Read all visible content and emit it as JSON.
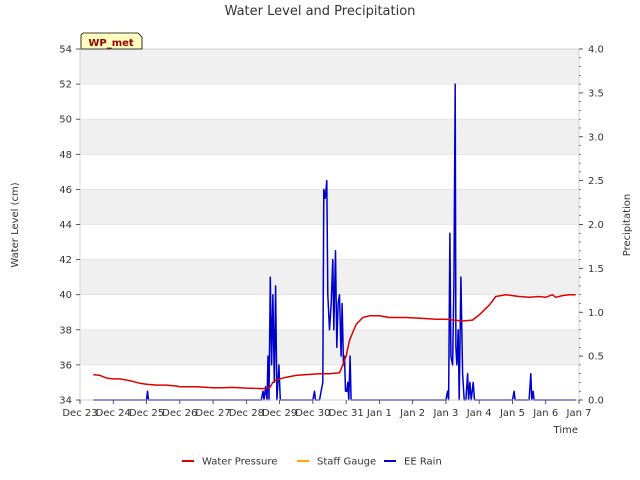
{
  "chart_data": {
    "type": "line",
    "title": "Water Level and Precipitation",
    "xlabel": "Time",
    "ylabel_left": "Water Level (cm)",
    "ylabel_right": "Precipitation",
    "badge": "WP_met",
    "x_ticks": [
      "Dec 23",
      "Dec 24",
      "Dec 25",
      "Dec 26",
      "Dec 27",
      "Dec 28",
      "Dec 29",
      "Dec 30",
      "Dec 31",
      "Jan 1",
      "Jan 2",
      "Jan 3",
      "Jan 4",
      "Jan 5",
      "Jan 6",
      "Jan 7"
    ],
    "xlim": [
      0,
      15
    ],
    "ylim_left": [
      34,
      54
    ],
    "y_ticks_left": [
      "34",
      "36",
      "38",
      "40",
      "42",
      "44",
      "46",
      "48",
      "50",
      "52",
      "54"
    ],
    "ylim_right": [
      0,
      4.0
    ],
    "y_ticks_right": [
      "0.0",
      "0.5",
      "1.0",
      "1.5",
      "2.0",
      "2.5",
      "3.0",
      "3.5",
      "4.0"
    ],
    "grid": true,
    "legend_position": "bottom",
    "colors": {
      "water_pressure": "#dd0000",
      "staff_gauge": "#ffa500",
      "ee_rain": "#0000cc",
      "band": "#f0f0f0",
      "badge_bg": "#ffffc0",
      "badge_text": "#990000"
    },
    "series": [
      {
        "name": "Water Pressure",
        "axis": "left",
        "points": [
          [
            0.4,
            35.45
          ],
          [
            0.6,
            35.4
          ],
          [
            0.8,
            35.25
          ],
          [
            1.0,
            35.2
          ],
          [
            1.2,
            35.2
          ],
          [
            1.5,
            35.1
          ],
          [
            1.8,
            34.95
          ],
          [
            2.0,
            34.9
          ],
          [
            2.3,
            34.85
          ],
          [
            2.6,
            34.85
          ],
          [
            2.9,
            34.8
          ],
          [
            3.0,
            34.75
          ],
          [
            3.5,
            34.75
          ],
          [
            4.0,
            34.7
          ],
          [
            4.3,
            34.7
          ],
          [
            4.6,
            34.72
          ],
          [
            5.0,
            34.68
          ],
          [
            5.5,
            34.65
          ],
          [
            5.7,
            34.7
          ],
          [
            5.8,
            35.0
          ],
          [
            5.9,
            35.15
          ],
          [
            6.2,
            35.3
          ],
          [
            6.5,
            35.4
          ],
          [
            6.8,
            35.45
          ],
          [
            7.2,
            35.5
          ],
          [
            7.5,
            35.5
          ],
          [
            7.8,
            35.55
          ],
          [
            7.9,
            36.0
          ],
          [
            8.0,
            36.5
          ],
          [
            8.1,
            37.4
          ],
          [
            8.3,
            38.3
          ],
          [
            8.5,
            38.7
          ],
          [
            8.7,
            38.8
          ],
          [
            9.0,
            38.8
          ],
          [
            9.3,
            38.7
          ],
          [
            9.8,
            38.7
          ],
          [
            10.3,
            38.65
          ],
          [
            10.7,
            38.6
          ],
          [
            11.0,
            38.6
          ],
          [
            11.5,
            38.5
          ],
          [
            11.8,
            38.55
          ],
          [
            12.0,
            38.85
          ],
          [
            12.3,
            39.4
          ],
          [
            12.5,
            39.9
          ],
          [
            12.8,
            40.0
          ],
          [
            13.2,
            39.9
          ],
          [
            13.5,
            39.85
          ],
          [
            13.8,
            39.9
          ],
          [
            14.0,
            39.85
          ],
          [
            14.2,
            40.0
          ],
          [
            14.3,
            39.85
          ],
          [
            14.5,
            39.95
          ],
          [
            14.7,
            40.0
          ],
          [
            14.9,
            40.0
          ]
        ]
      },
      {
        "name": "Staff Gauge",
        "axis": "left",
        "points": []
      },
      {
        "name": "EE Rain",
        "axis": "right",
        "points": [
          [
            0.4,
            0
          ],
          [
            2.0,
            0
          ],
          [
            2.03,
            0.1
          ],
          [
            2.06,
            0
          ],
          [
            5.0,
            0
          ],
          [
            5.45,
            0
          ],
          [
            5.5,
            0.1
          ],
          [
            5.53,
            0
          ],
          [
            5.58,
            0.15
          ],
          [
            5.62,
            0
          ],
          [
            5.65,
            0.5
          ],
          [
            5.68,
            0
          ],
          [
            5.72,
            1.4
          ],
          [
            5.76,
            0.4
          ],
          [
            5.8,
            1.2
          ],
          [
            5.84,
            0.2
          ],
          [
            5.88,
            1.3
          ],
          [
            5.92,
            0
          ],
          [
            5.98,
            0.4
          ],
          [
            6.02,
            0
          ],
          [
            6.1,
            0
          ],
          [
            7.0,
            0
          ],
          [
            7.05,
            0.1
          ],
          [
            7.08,
            0
          ],
          [
            7.2,
            0
          ],
          [
            7.3,
            0.2
          ],
          [
            7.33,
            2.4
          ],
          [
            7.37,
            2.3
          ],
          [
            7.42,
            2.5
          ],
          [
            7.45,
            1.2
          ],
          [
            7.5,
            0.8
          ],
          [
            7.55,
            1.1
          ],
          [
            7.6,
            1.6
          ],
          [
            7.63,
            0.8
          ],
          [
            7.68,
            1.7
          ],
          [
            7.72,
            0.6
          ],
          [
            7.76,
            1.1
          ],
          [
            7.8,
            1.2
          ],
          [
            7.85,
            0.5
          ],
          [
            7.88,
            1.1
          ],
          [
            7.92,
            0.4
          ],
          [
            7.95,
            0.5
          ],
          [
            7.98,
            0.1
          ],
          [
            8.02,
            0.1
          ],
          [
            8.05,
            0.2
          ],
          [
            8.08,
            0
          ],
          [
            8.12,
            0.5
          ],
          [
            8.15,
            0
          ],
          [
            11.0,
            0
          ],
          [
            11.05,
            0.1
          ],
          [
            11.08,
            0
          ],
          [
            11.12,
            1.9
          ],
          [
            11.15,
            0.5
          ],
          [
            11.2,
            0.4
          ],
          [
            11.24,
            1.3
          ],
          [
            11.28,
            3.6
          ],
          [
            11.3,
            0.6
          ],
          [
            11.33,
            0.4
          ],
          [
            11.37,
            0.8
          ],
          [
            11.4,
            0
          ],
          [
            11.45,
            1.4
          ],
          [
            11.5,
            0.3
          ],
          [
            11.55,
            0
          ],
          [
            11.6,
            0
          ],
          [
            11.65,
            0.3
          ],
          [
            11.68,
            0
          ],
          [
            11.72,
            0.2
          ],
          [
            11.76,
            0
          ],
          [
            11.82,
            0.2
          ],
          [
            11.86,
            0
          ],
          [
            13.0,
            0
          ],
          [
            13.05,
            0.1
          ],
          [
            13.08,
            0
          ],
          [
            13.5,
            0
          ],
          [
            13.55,
            0.3
          ],
          [
            13.58,
            0
          ],
          [
            13.62,
            0.1
          ],
          [
            13.65,
            0
          ],
          [
            14.9,
            0
          ]
        ]
      }
    ]
  }
}
